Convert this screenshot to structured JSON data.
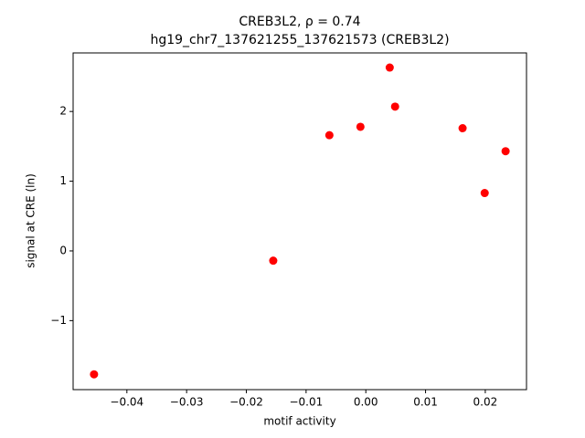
{
  "chart_data": {
    "type": "scatter",
    "title": "CREB3L2, ρ = 0.74",
    "subtitle": "hg19_chr7_137621255_137621573 (CREB3L2)",
    "x_label": "motif activity",
    "y_label": "signal at CRE (ln)",
    "color": "#ff0000",
    "x": [
      -0.0455,
      -0.0155,
      -0.0061,
      -0.0009,
      0.004,
      0.0049,
      0.0162,
      0.0234,
      0.0199
    ],
    "values": [
      -1.77,
      -0.14,
      1.66,
      1.78,
      2.63,
      2.07,
      1.76,
      1.43,
      0.83
    ],
    "xlim": [
      -0.049,
      0.0269
    ],
    "ylim": [
      -1.99,
      2.84
    ],
    "xticks": [
      {
        "value": -0.04,
        "label": "−0.04"
      },
      {
        "value": -0.03,
        "label": "−0.03"
      },
      {
        "value": -0.02,
        "label": "−0.02"
      },
      {
        "value": -0.01,
        "label": "−0.01"
      },
      {
        "value": 0,
        "label": "0.00"
      },
      0.01,
      0.02
    ],
    "yticks": [
      {
        "value": -1,
        "label": "−1"
      },
      0,
      1,
      2
    ],
    "grid": false
  }
}
